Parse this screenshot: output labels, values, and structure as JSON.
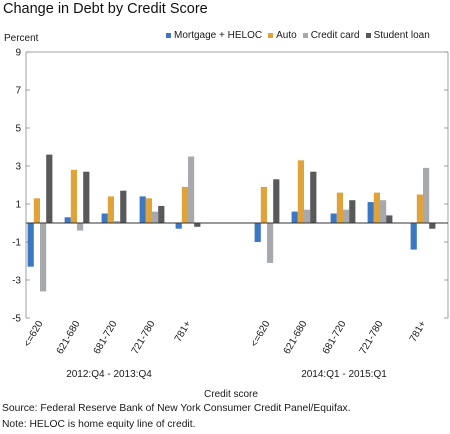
{
  "chart_data": {
    "type": "bar",
    "title": "Change in Debt by Credit Score",
    "ylabel": "Percent",
    "xlabel": "Credit score",
    "ylim": [
      -5,
      9
    ],
    "yticks": [
      9,
      7,
      5,
      3,
      1,
      -1,
      -3,
      -5
    ],
    "grid": false,
    "legend_position": "top-right",
    "groups": [
      {
        "label": "2012:Q4 - 2013:Q4",
        "categories": [
          "<=620",
          "621-680",
          "681-720",
          "721-780",
          "781+"
        ]
      },
      {
        "label": "2014:Q1 - 2015:Q1",
        "categories": [
          "<=620",
          "621-680",
          "681-720",
          "721-780",
          "781+"
        ]
      }
    ],
    "series": [
      {
        "name": "Mortgage + HELOC",
        "color": "#3c78c2",
        "values": [
          -2.3,
          0.3,
          0.5,
          1.4,
          -0.3,
          -1.0,
          0.6,
          0.5,
          1.1,
          -1.4
        ]
      },
      {
        "name": "Auto",
        "color": "#e0a33a",
        "values": [
          1.3,
          2.8,
          1.4,
          1.3,
          1.9,
          1.9,
          3.3,
          1.6,
          1.6,
          1.5
        ]
      },
      {
        "name": "Credit card",
        "color": "#a8a9ad",
        "values": [
          -3.6,
          -0.4,
          0.1,
          0.6,
          3.5,
          -2.1,
          0.7,
          0.7,
          1.2,
          2.9
        ]
      },
      {
        "name": "Student loan",
        "color": "#58595b",
        "values": [
          3.6,
          2.7,
          1.7,
          0.9,
          -0.2,
          2.3,
          2.7,
          1.2,
          0.4,
          -0.3
        ]
      }
    ]
  },
  "footnotes": {
    "source": "Source: Federal Reserve Bank of New York Consumer Credit Panel/Equifax.",
    "note": "Note: HELOC is home equity line of credit."
  }
}
